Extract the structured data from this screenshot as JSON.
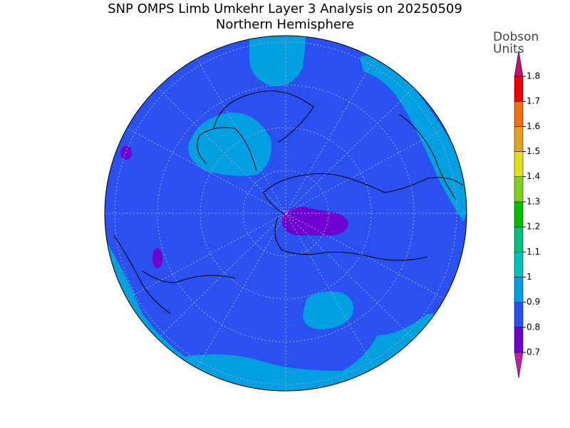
{
  "title": "SNP OMPS Limb Umkehr Layer 3 Analysis on 20250509",
  "subtitle": "Northern Hemisphere",
  "colorbar": {
    "label": [
      "Dobson",
      "Units"
    ],
    "ticks": [
      0.7,
      0.8,
      0.9,
      1,
      1.1,
      1.2,
      1.3,
      1.4,
      1.5,
      1.6,
      1.7,
      1.8
    ],
    "under_color": "#c020a0",
    "over_color": "#c01070",
    "colors": [
      "#7000d0",
      "#2a50f0",
      "#00a0e0",
      "#00c0c0",
      "#00c080",
      "#00c000",
      "#80d020",
      "#e0e020",
      "#e0a020",
      "#f07010",
      "#f00000"
    ]
  }
}
